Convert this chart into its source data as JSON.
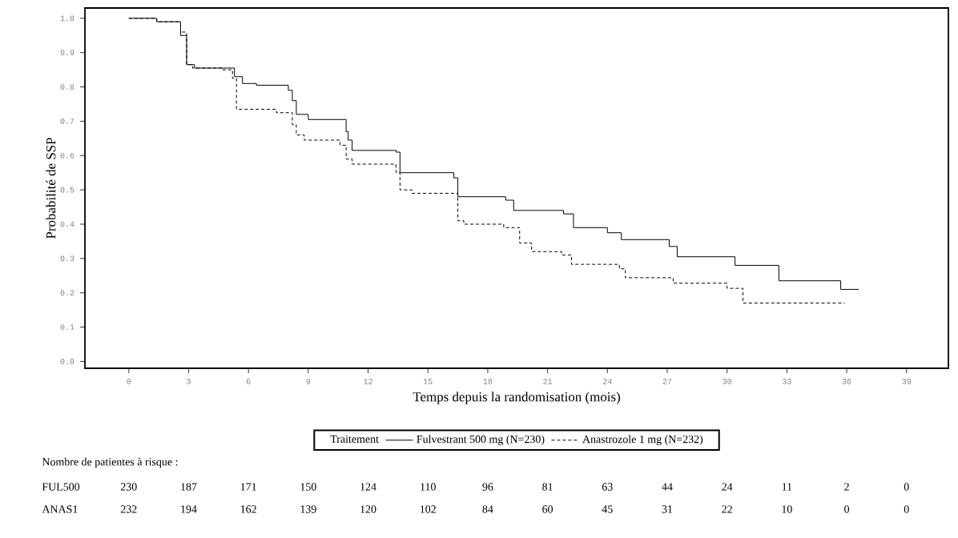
{
  "chart_data": {
    "type": "step",
    "xlabel": "Temps depuis la randomisation (mois)",
    "ylabel": "Probabilité de SSP",
    "legend_title": "Traitement",
    "legend": "bottom",
    "xlim": [
      -2.2,
      41.1
    ],
    "ylim": [
      -0.02,
      1.03
    ],
    "xticks": [
      0,
      3,
      6,
      9,
      12,
      15,
      18,
      21,
      24,
      27,
      30,
      33,
      36,
      39
    ],
    "yticks": [
      {
        "value": 0,
        "label": "0.0"
      },
      0.1,
      0.2,
      0.3,
      0.4,
      0.5,
      0.6,
      0.7,
      0.8,
      0.9,
      {
        "value": 1,
        "label": "1.0"
      }
    ],
    "grid": false,
    "series": [
      {
        "name": "Fulvestrant 500 mg (N=230)",
        "color": "#000000",
        "line_style": "solid",
        "x": [
          0,
          1.4,
          2.6,
          2.9,
          3.3,
          5.3,
          5.7,
          6.4,
          8.0,
          8.2,
          8.4,
          9.0,
          10.9,
          11.0,
          11.2,
          13.4,
          13.6,
          16.3,
          16.5,
          18.9,
          19.3,
          21.8,
          22.3,
          24.0,
          24.7,
          27.1,
          27.5,
          30.4,
          32.6,
          35.7,
          36.6
        ],
        "values": [
          1.0,
          0.99,
          0.95,
          0.865,
          0.855,
          0.83,
          0.81,
          0.805,
          0.79,
          0.76,
          0.72,
          0.705,
          0.67,
          0.645,
          0.615,
          0.61,
          0.55,
          0.535,
          0.48,
          0.47,
          0.44,
          0.43,
          0.39,
          0.375,
          0.355,
          0.335,
          0.305,
          0.28,
          0.235,
          0.21,
          0.21
        ]
      },
      {
        "name": "Anastrozole 1 mg (N=232)",
        "color": "#000000",
        "line_style": "dashed",
        "x": [
          0,
          1.4,
          2.6,
          2.9,
          3.2,
          4.7,
          5.2,
          5.4,
          7.4,
          8.2,
          8.4,
          8.8,
          10.6,
          10.9,
          11.2,
          13.4,
          13.6,
          14.2,
          16.5,
          16.8,
          18.8,
          19.6,
          20.2,
          21.7,
          22.2,
          24.6,
          24.9,
          27.3,
          30.0,
          30.8,
          35.9
        ],
        "values": [
          1.0,
          0.99,
          0.96,
          0.865,
          0.855,
          0.85,
          0.825,
          0.735,
          0.725,
          0.69,
          0.66,
          0.645,
          0.63,
          0.59,
          0.575,
          0.55,
          0.5,
          0.49,
          0.41,
          0.4,
          0.39,
          0.345,
          0.32,
          0.31,
          0.283,
          0.27,
          0.244,
          0.228,
          0.213,
          0.17,
          0.17
        ]
      }
    ],
    "annotations": [
      "Nombre de patientes à risque :",
      "FUL500",
      "230",
      "187",
      "171",
      "150",
      "124",
      "110",
      "96",
      "81",
      "63",
      "44",
      "24",
      "11",
      "2",
      "0",
      "ANAS1",
      "232",
      "194",
      "162",
      "139",
      "120",
      "102",
      "84",
      "60",
      "45",
      "31",
      "22",
      "10",
      "0",
      "0"
    ]
  }
}
